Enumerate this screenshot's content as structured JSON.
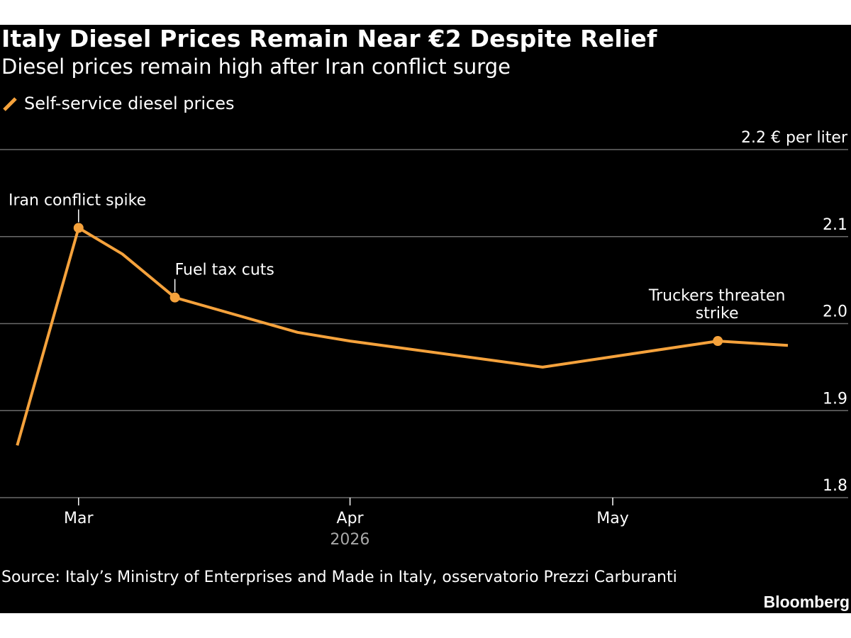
{
  "colors": {
    "background": "#000000",
    "line": "#f5a23c",
    "grid": "#6b6b6b",
    "text": "#ffffff",
    "year_label": "#a8a8a8"
  },
  "header": {
    "title": "Italy Diesel Prices Remain Near €2 Despite Relief",
    "subtitle": "Diesel prices remain high after Iran conflict surge"
  },
  "footer": {
    "source": "Source: Italy’s Ministry of Enterprises and Made in Italy, osservatorio Prezzi Carburanti",
    "brand": "Bloomberg"
  },
  "chart_data": {
    "type": "line",
    "title": "Italy Diesel Prices Remain Near €2 Despite Relief",
    "subtitle": "Diesel prices remain high after Iran conflict surge",
    "ylabel": "€ per liter",
    "ylim": [
      1.8,
      2.2
    ],
    "yticks": [
      1.8,
      1.9,
      2.0,
      2.1,
      2.2
    ],
    "ytick_labels": [
      "1.8",
      "1.9",
      "2.0",
      "2.1",
      "2.2 € per liter"
    ],
    "xlim": [
      "2026-02-21",
      "2026-05-24"
    ],
    "xticks": [
      {
        "date": "2026-03-01",
        "label": "Mar"
      },
      {
        "date": "2026-04-01",
        "label": "Apr"
      },
      {
        "date": "2026-05-01",
        "label": "May"
      }
    ],
    "x_secondary_label": "2026",
    "grid": true,
    "legend_position": "top-left",
    "series": [
      {
        "name": "Self-service diesel prices",
        "color": "#f5a23c",
        "points": [
          {
            "x": "2026-02-22",
            "y": 1.86
          },
          {
            "x": "2026-02-29",
            "y": 2.11
          },
          {
            "x": "2026-03-06",
            "y": 2.08
          },
          {
            "x": "2026-03-12",
            "y": 2.03
          },
          {
            "x": "2026-03-26",
            "y": 1.99
          },
          {
            "x": "2026-04-01",
            "y": 1.98
          },
          {
            "x": "2026-04-23",
            "y": 1.95
          },
          {
            "x": "2026-05-13",
            "y": 1.98
          },
          {
            "x": "2026-05-21",
            "y": 1.975
          }
        ]
      }
    ],
    "annotations": [
      {
        "text": [
          "Iran conflict spike"
        ],
        "x": "2026-02-29",
        "y": 2.11,
        "anchor": "start"
      },
      {
        "text": [
          "Fuel tax cuts"
        ],
        "x": "2026-03-12",
        "y": 2.03,
        "anchor": "start"
      },
      {
        "text": [
          "Truckers threaten",
          "strike"
        ],
        "x": "2026-05-13",
        "y": 1.98,
        "anchor": "middle"
      }
    ]
  }
}
